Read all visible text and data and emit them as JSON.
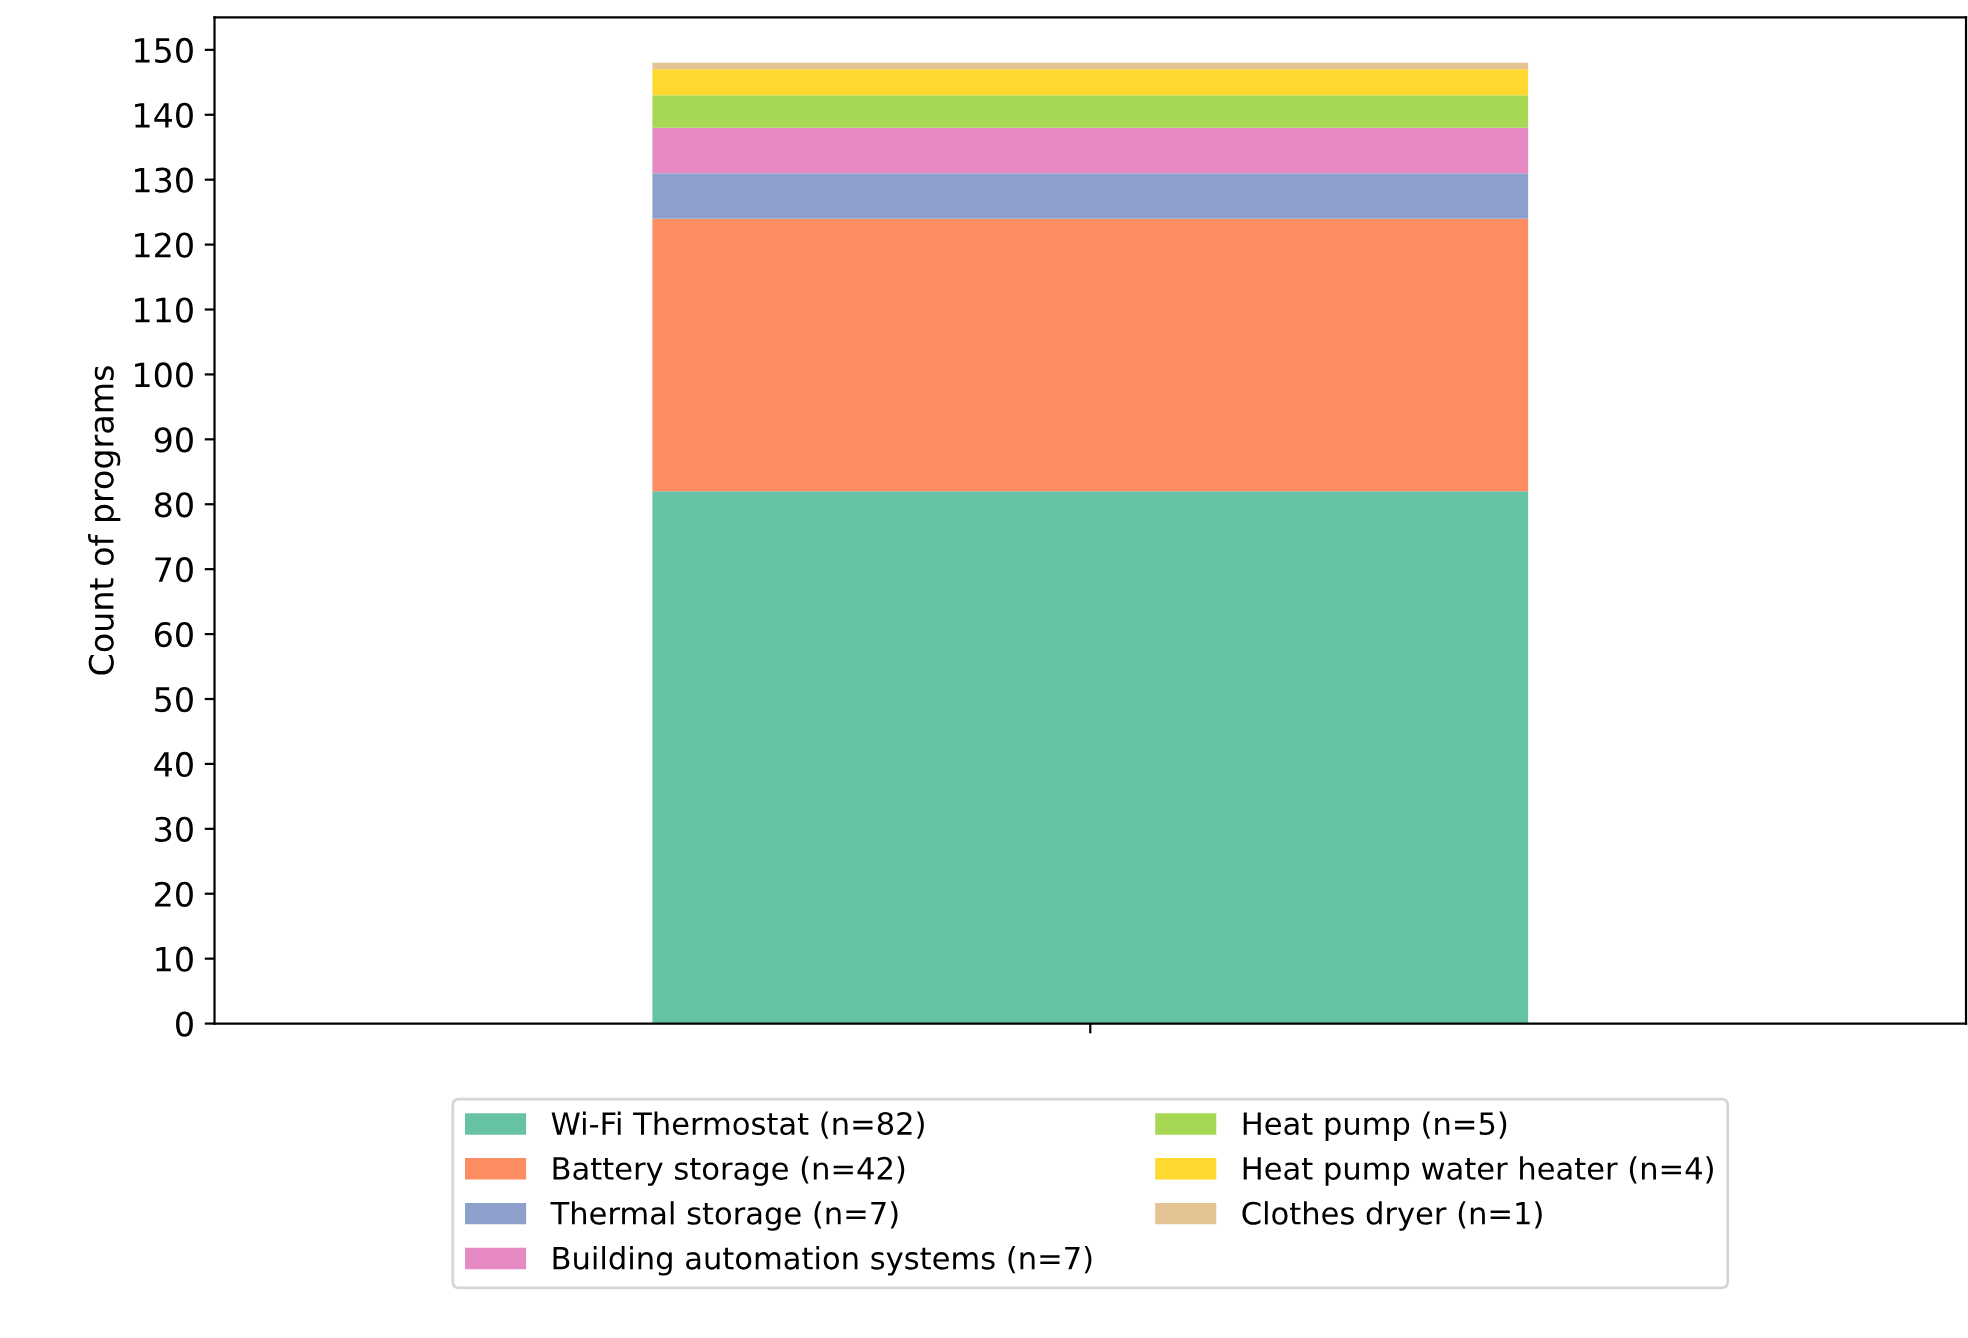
{
  "chart_data": {
    "type": "bar",
    "stacked": true,
    "ylabel": "Count of programs",
    "categories": [
      null
    ],
    "ylim": [
      0,
      155
    ],
    "yticks": [
      0,
      10,
      20,
      30,
      40,
      50,
      60,
      70,
      80,
      90,
      100,
      110,
      120,
      130,
      140,
      150
    ],
    "legend": "bottom",
    "grid": false,
    "series": [
      {
        "name": "Wi-Fi Thermostat (n=82)",
        "color": "#66c2a5",
        "values": [
          82
        ]
      },
      {
        "name": "Battery storage (n=42)",
        "color": "#fc8d62",
        "values": [
          42
        ]
      },
      {
        "name": "Thermal storage (n=7)",
        "color": "#8da0cb",
        "values": [
          7
        ]
      },
      {
        "name": "Building automation systems (n=7)",
        "color": "#e78ac3",
        "values": [
          7
        ]
      },
      {
        "name": "Heat pump (n=5)",
        "color": "#a6d854",
        "values": [
          5
        ]
      },
      {
        "name": "Heat pump water heater (n=4)",
        "color": "#ffd92f",
        "values": [
          4
        ]
      },
      {
        "name": "Clothes dryer (n=1)",
        "color": "#e5c494",
        "values": [
          1
        ]
      }
    ]
  }
}
